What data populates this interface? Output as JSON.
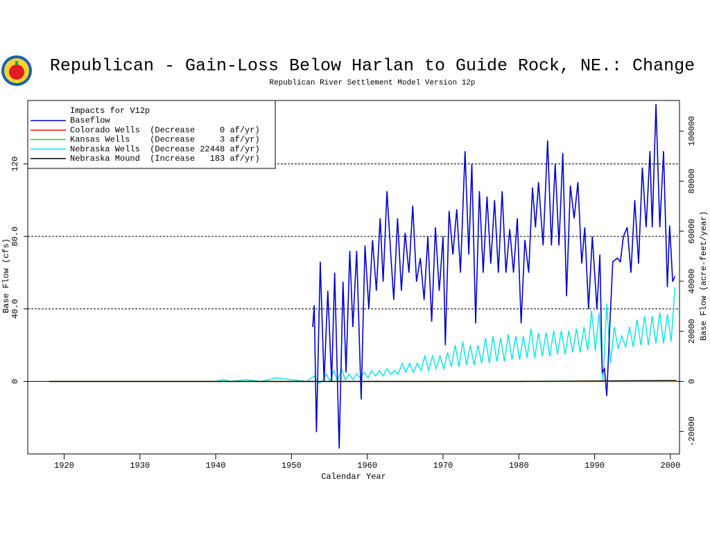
{
  "chart_data": {
    "type": "line",
    "title": "Republican - Gain-Loss Below Harlan to Guide Rock, NE.: Change",
    "subtitle": "Republican River Settlement Model Version 12p",
    "xlabel": "Calendar Year",
    "ylabel": "Base Flow (cfs)",
    "y2label": "Base Flow (acre-feet/year)",
    "legend_title": "Impacts for V12p",
    "xlim": [
      1915.2,
      2001.2
    ],
    "xticks": [
      1920,
      1930,
      1940,
      1950,
      1960,
      1970,
      1980,
      1990,
      2000
    ],
    "ylim": [
      -40,
      155
    ],
    "yticks": [
      0,
      {
        "value": 40,
        "label": "40.0"
      },
      {
        "value": 80,
        "label": "80.0"
      },
      120
    ],
    "y2lim": [
      -28960,
      112216
    ],
    "y2ticks": [
      -20000,
      0,
      20000,
      40000,
      60000,
      80000,
      100000
    ],
    "grid": true,
    "series": [
      {
        "name": "Baseflow",
        "color": "#0000cc",
        "x": [
          1952.8,
          1953.0,
          1953.3,
          1953.8,
          1954.3,
          1954.8,
          1955.3,
          1955.7,
          1956.3,
          1956.8,
          1957.2,
          1957.7,
          1958.1,
          1958.6,
          1959.2,
          1959.7,
          1960.2,
          1960.7,
          1961.2,
          1961.7,
          1962.1,
          1962.6,
          1963.1,
          1963.5,
          1964.0,
          1964.5,
          1965.0,
          1965.5,
          1966.0,
          1966.5,
          1967.0,
          1967.5,
          1968.0,
          1968.5,
          1969.0,
          1969.5,
          1970.0,
          1970.3,
          1970.8,
          1971.3,
          1971.8,
          1972.3,
          1972.9,
          1973.4,
          1973.8,
          1974.3,
          1974.8,
          1975.3,
          1975.8,
          1976.3,
          1976.8,
          1977.3,
          1977.8,
          1978.3,
          1978.8,
          1979.3,
          1979.8,
          1980.3,
          1980.8,
          1981.3,
          1981.8,
          1982.2,
          1982.6,
          1983.2,
          1983.8,
          1984.3,
          1984.8,
          1985.3,
          1985.8,
          1986.3,
          1986.8,
          1987.3,
          1987.8,
          1988.3,
          1988.7,
          1989.2,
          1989.7,
          1990.3,
          1990.7,
          1991.0,
          1991.3,
          1991.6,
          1992.0,
          1992.4,
          1993.0,
          1993.4,
          1993.8,
          1994.3,
          1994.8,
          1995.3,
          1995.8,
          1996.3,
          1996.8,
          1997.3,
          1997.6,
          1998.1,
          1998.6,
          1999.1,
          1999.6,
          1999.9,
          2000.3,
          2000.6
        ],
        "values": [
          30,
          42,
          -28,
          66,
          0,
          50,
          0,
          60,
          -37,
          55,
          5,
          72,
          30,
          72,
          -10,
          75,
          40,
          78,
          50,
          90,
          55,
          105,
          70,
          45,
          90,
          50,
          82,
          60,
          97,
          55,
          68,
          45,
          80,
          33,
          85,
          50,
          80,
          20,
          94,
          70,
          95,
          60,
          127,
          70,
          120,
          32,
          105,
          60,
          102,
          65,
          100,
          60,
          105,
          60,
          84,
          60,
          90,
          32,
          78,
          60,
          107,
          85,
          110,
          75,
          133,
          75,
          120,
          75,
          126,
          47,
          108,
          90,
          110,
          65,
          85,
          40,
          80,
          40,
          70,
          5,
          7,
          -8,
          30,
          66,
          68,
          66,
          80,
          85,
          60,
          100,
          65,
          118,
          85,
          127,
          85,
          153,
          85,
          127,
          52,
          86,
          55,
          58
        ]
      },
      {
        "name": "Colorado Wells  (Decrease     0 af/yr)",
        "color": "#ff0000",
        "x": [
          1918,
          2000.8
        ],
        "values": [
          0,
          0
        ]
      },
      {
        "name": "Kansas Wells    (Decrease     3 af/yr)",
        "color": "#33cc33",
        "x": [
          1918,
          2000.8
        ],
        "values": [
          0,
          0
        ]
      },
      {
        "name": "Nebraska Wells  (Decrease 22448 af/yr)",
        "color": "#00e5e5",
        "x": [
          1918,
          1940,
          1941,
          1942,
          1944,
          1946,
          1948,
          1950,
          1952,
          1953,
          1953.5,
          1954.1,
          1954.6,
          1955.1,
          1955.6,
          1956.1,
          1956.6,
          1957.1,
          1957.6,
          1958.1,
          1958.6,
          1959.1,
          1959.6,
          1960.1,
          1960.6,
          1961.1,
          1961.6,
          1962.1,
          1962.6,
          1963.1,
          1963.6,
          1964.1,
          1964.6,
          1965.1,
          1965.6,
          1966.1,
          1966.6,
          1967.1,
          1967.6,
          1968.1,
          1968.6,
          1969.1,
          1969.6,
          1970.1,
          1970.6,
          1971.1,
          1971.6,
          1972.1,
          1972.6,
          1973.1,
          1973.6,
          1974.1,
          1974.6,
          1975.1,
          1975.6,
          1976.1,
          1976.6,
          1977.1,
          1977.6,
          1978.1,
          1978.6,
          1979.1,
          1979.6,
          1980.1,
          1980.6,
          1981.1,
          1981.6,
          1982.1,
          1982.6,
          1983.1,
          1983.6,
          1984.1,
          1984.6,
          1985.1,
          1985.6,
          1986.1,
          1986.6,
          1987.1,
          1987.6,
          1988.1,
          1988.6,
          1989.1,
          1989.6,
          1990.1,
          1990.6,
          1991.1,
          1991.6,
          1992.1,
          1992.6,
          1993.1,
          1993.6,
          1994.1,
          1994.6,
          1995.1,
          1995.6,
          1996.1,
          1996.6,
          1997.1,
          1997.6,
          1998.1,
          1998.6,
          1999.1,
          1999.6,
          2000.1,
          2000.6
        ],
        "values": [
          0,
          0,
          1,
          0,
          1,
          0,
          2,
          1,
          0,
          3,
          -1,
          0,
          4,
          0,
          6,
          0,
          7,
          1,
          4,
          1,
          4,
          2,
          5,
          2,
          6,
          3,
          6,
          3,
          7,
          4,
          6,
          4,
          10,
          5,
          10,
          5,
          10,
          6,
          14,
          6,
          14,
          7,
          14,
          7,
          16,
          8,
          20,
          8,
          22,
          9,
          20,
          9,
          20,
          10,
          24,
          10,
          25,
          11,
          24,
          11,
          26,
          12,
          25,
          12,
          25,
          13,
          29,
          13,
          27,
          14,
          27,
          14,
          28,
          15,
          28,
          15,
          28,
          16,
          29,
          16,
          30,
          17,
          39,
          17,
          38,
          0,
          43,
          10,
          30,
          18,
          25,
          19,
          30,
          19,
          34,
          20,
          36,
          20,
          36,
          21,
          38,
          21,
          37,
          22,
          52
        ]
      },
      {
        "name": "Nebraska Mound  (Increase   183 af/yr)",
        "color": "#000000",
        "x": [
          1918,
          1980,
          2000.8
        ],
        "values": [
          0,
          0,
          0.5
        ]
      }
    ]
  }
}
